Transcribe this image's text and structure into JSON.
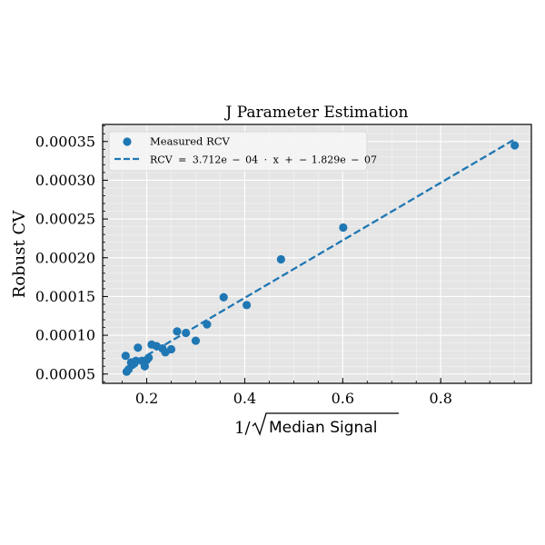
{
  "chart_data": {
    "type": "scatter",
    "title": "J Parameter Estimation",
    "xlabel_prefix": "1/",
    "xlabel_radicand": "Median Signal",
    "ylabel": "Robust CV",
    "xlim": [
      0.11,
      0.985
    ],
    "ylim": [
      3.8e-05,
      0.000372
    ],
    "xticks": [
      0.2,
      0.4,
      0.6,
      0.8
    ],
    "xtick_labels": [
      "0.2",
      "0.4",
      "0.6",
      "0.8"
    ],
    "yticks": [
      5e-05,
      0.0001,
      0.00015,
      0.0002,
      0.00025,
      0.0003,
      0.00035
    ],
    "ytick_labels": [
      "0.00005",
      "0.00010",
      "0.00015",
      "0.00020",
      "0.00025",
      "0.00030",
      "0.00035"
    ],
    "grid": true,
    "legend_position": "top-left",
    "colors": {
      "series": "#1f77b4",
      "background": "#e5e5e5",
      "grid": "#ffffff"
    },
    "series": [
      {
        "name": "Measured RCV",
        "kind": "scatter",
        "x": [
          0.157,
          0.159,
          0.163,
          0.168,
          0.171,
          0.175,
          0.178,
          0.182,
          0.19,
          0.196,
          0.2,
          0.204,
          0.21,
          0.22,
          0.232,
          0.238,
          0.25,
          0.262,
          0.28,
          0.3,
          0.323,
          0.357,
          0.404,
          0.474,
          0.601,
          0.951
        ],
        "y": [
          7.35e-05,
          5.3e-05,
          5.6e-05,
          6.5e-05,
          6.2e-05,
          6.4e-05,
          6.7e-05,
          8.4e-05,
          6.7e-05,
          6e-05,
          6.8e-05,
          7.1e-05,
          8.8e-05,
          8.6e-05,
          8.3e-05,
          7.8e-05,
          8.2e-05,
          0.000105,
          0.000103,
          9.3e-05,
          0.000114,
          0.000149,
          0.000139,
          0.000198,
          0.000239,
          0.000345
        ]
      },
      {
        "name_parts": [
          "RCV",
          "=",
          "3.712e",
          "−",
          "04",
          "·",
          "x",
          "+",
          "−",
          "1.829e",
          "−",
          "07"
        ],
        "kind": "fit-line",
        "slope": 0.0003712,
        "intercept": -1.829e-07,
        "x_range": [
          0.2,
          0.951
        ]
      }
    ]
  }
}
